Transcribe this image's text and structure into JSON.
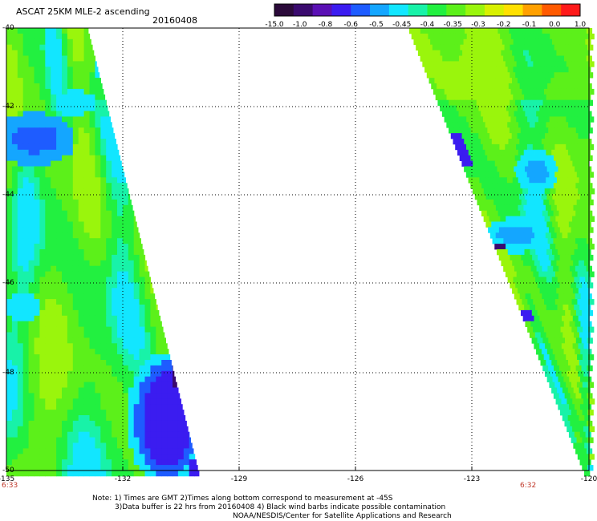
{
  "header": {
    "title": "ASCAT 25KM MLE-2 ascending",
    "date": "20160408"
  },
  "colorbar": {
    "labels": [
      "-15.0",
      "-1.0",
      "-0.8",
      "-0.6",
      "-0.5",
      "-0.45",
      "-0.4",
      "-0.35",
      "-0.3",
      "-0.2",
      "-0.1",
      "0.0",
      "1.0"
    ],
    "colors": [
      "#2b0a3a",
      "#3a0a6e",
      "#5a10b4",
      "#3b1cf0",
      "#1e5cff",
      "#14a6ff",
      "#12e6ff",
      "#18f2a8",
      "#22f040",
      "#5cf01a",
      "#9af50c",
      "#d8f000",
      "#ffe000",
      "#ffa000",
      "#ff5a00",
      "#ff1a1a"
    ]
  },
  "axes": {
    "lat_labels": [
      "-40",
      "-42",
      "-44",
      "-46",
      "-48",
      "-50"
    ],
    "lon_labels": [
      "-135",
      "-132",
      "-129",
      "-126",
      "-123",
      "-120"
    ]
  },
  "times": {
    "left": "6:33",
    "right": "6:32"
  },
  "notes": {
    "line1": "Note: 1) Times are GMT 2)Times along bottom correspond to measurement at -45S",
    "line2": "3)Data buffer is 22 hrs from 20160408 4) Black wind barbs indicate possible contamination",
    "line3": "NOAA/NESDIS/Center for Satellite Applications and Research"
  }
}
